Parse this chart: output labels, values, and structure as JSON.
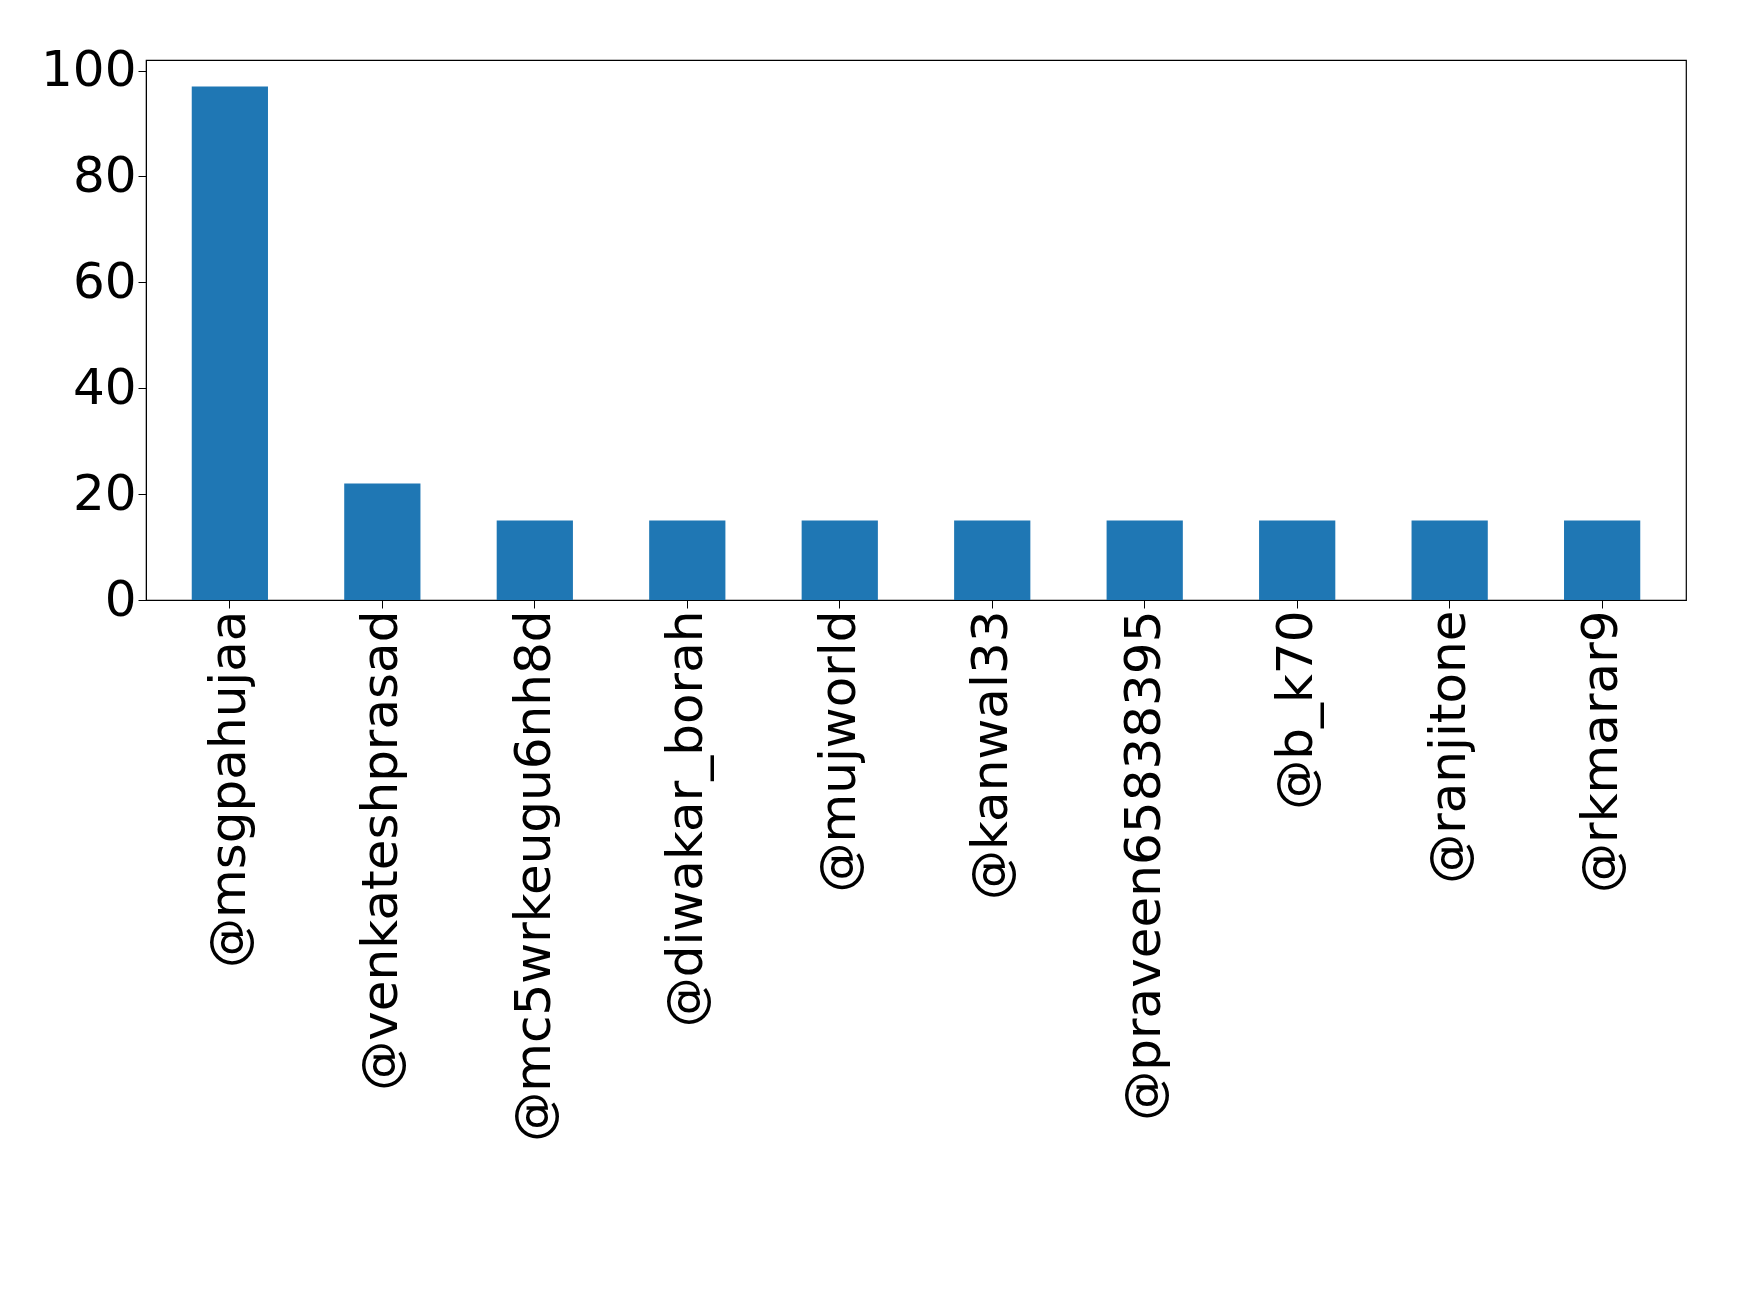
{
  "chart_data": {
    "type": "bar",
    "categories": [
      "@msgpahujaa",
      "@venkateshprasad",
      "@mc5wrkeugu6nh8d",
      "@diwakar_borah",
      "@mujworld",
      "@kanwal33",
      "@praveen65838395",
      "@b_k70",
      "@ranjitone",
      "@rkmarar9"
    ],
    "values": [
      97,
      22,
      15,
      15,
      15,
      15,
      15,
      15,
      15,
      15
    ],
    "color": "#1f77b4",
    "ylim": [
      0,
      102
    ],
    "yticks": [
      0,
      20,
      40,
      60,
      80,
      100
    ],
    "grid": false
  }
}
